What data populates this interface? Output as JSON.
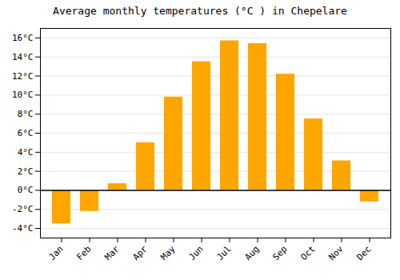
{
  "chart_data": {
    "type": "bar",
    "title": "Average monthly temperatures (°C ) in Chepelare",
    "categories": [
      "Jan",
      "Feb",
      "Mar",
      "Apr",
      "May",
      "Jun",
      "Jul",
      "Aug",
      "Sep",
      "Oct",
      "Nov",
      "Dec"
    ],
    "values": [
      -3.5,
      -2.2,
      0.7,
      5.0,
      9.8,
      13.5,
      15.7,
      15.4,
      12.2,
      7.5,
      3.1,
      -1.2
    ],
    "color": "#FFA500",
    "ylim": [
      -5,
      17
    ],
    "yticks": [
      {
        "value": -4,
        "label": "-4°C"
      },
      {
        "value": -2,
        "label": "-2°C"
      },
      {
        "value": 0,
        "label": "0°C"
      },
      {
        "value": 2,
        "label": "2°C"
      },
      {
        "value": 4,
        "label": "4°C"
      },
      {
        "value": 6,
        "label": "6°C"
      },
      {
        "value": 8,
        "label": "8°C"
      },
      {
        "value": 10,
        "label": "10°C"
      },
      {
        "value": 12,
        "label": "12°C"
      },
      {
        "value": 14,
        "label": "14°C"
      },
      {
        "value": 16,
        "label": "16°C"
      }
    ],
    "grid": true
  }
}
